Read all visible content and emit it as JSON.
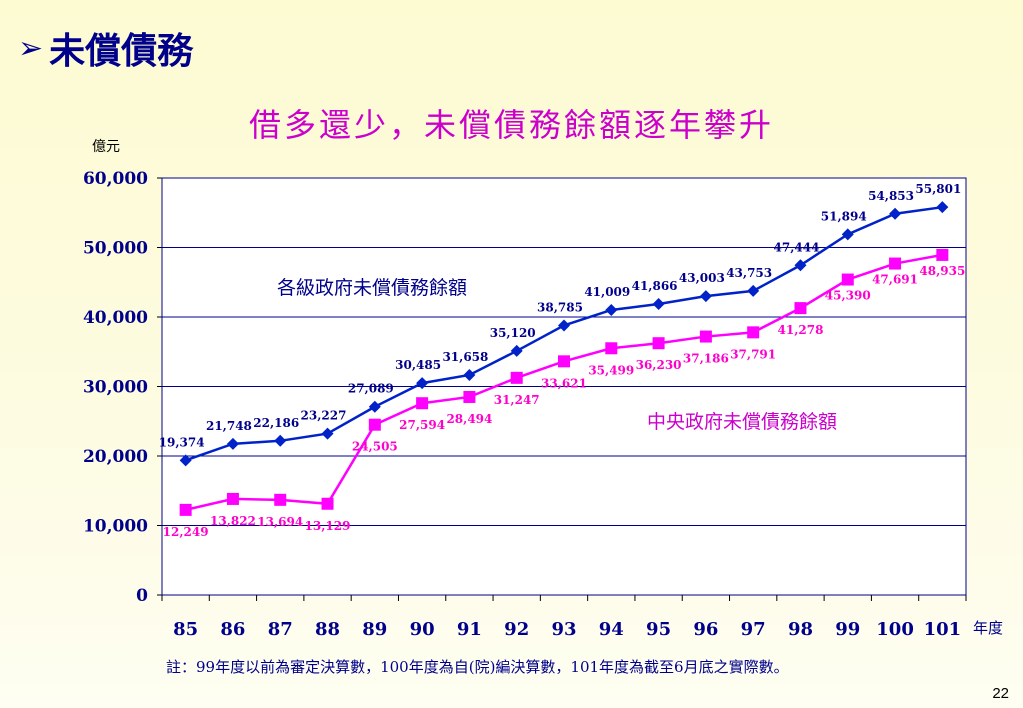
{
  "heading": {
    "arrow": "➢",
    "text": "未償債務"
  },
  "subtitle": "借多還少，未償債務餘額逐年攀升",
  "unit_label": "億元",
  "x_axis_unit": "年度",
  "footnote": "註：99年度以前為審定決算數，100年度為自(院)編決算數，101年度為截至6月底之實際數。",
  "page_number": "22",
  "colors": {
    "all_gov": "#0022c8",
    "central_gov": "#ff00ff",
    "heading": "#00008b"
  },
  "chart_data": {
    "type": "line",
    "title": "借多還少，未償債務餘額逐年攀升",
    "ylabel": "億元",
    "xlabel": "年度",
    "ylim": [
      0,
      60000
    ],
    "yticks": [
      "0",
      "10,000",
      "20,000",
      "30,000",
      "40,000",
      "50,000",
      "60,000"
    ],
    "grid": true,
    "categories": [
      "85",
      "86",
      "87",
      "88",
      "89",
      "90",
      "91",
      "92",
      "93",
      "94",
      "95",
      "96",
      "97",
      "98",
      "99",
      "100",
      "101"
    ],
    "series": [
      {
        "name": "各級政府未償債務餘額",
        "color": "#0022c8",
        "marker": "diamond",
        "values": [
          19374,
          21748,
          22186,
          23227,
          27089,
          30485,
          31658,
          35120,
          38785,
          41009,
          41866,
          43003,
          43753,
          47444,
          51894,
          54853,
          55801
        ],
        "labels": [
          "19,374",
          "21,748",
          "22,186",
          "23,227",
          "27,089",
          "30,485",
          "31,658",
          "35,120",
          "38,785",
          "41,009",
          "41,866",
          "43,003",
          "43,753",
          "47,444",
          "51,894",
          "54,853",
          "55,801"
        ]
      },
      {
        "name": "中央政府未償債務餘額",
        "color": "#ff00ff",
        "marker": "square",
        "values": [
          12249,
          13822,
          13694,
          13129,
          24505,
          27594,
          28494,
          31247,
          33621,
          35499,
          36230,
          37186,
          37791,
          41278,
          45390,
          47691,
          48935
        ],
        "labels": [
          "12,249",
          "13,822",
          "13,694",
          "13,129",
          "24,505",
          "27,594",
          "28,494",
          "31,247",
          "33,621",
          "35,499",
          "36,230",
          "37,186",
          "37,791",
          "41,278",
          "45,390",
          "47,691",
          "48,935"
        ]
      }
    ]
  }
}
